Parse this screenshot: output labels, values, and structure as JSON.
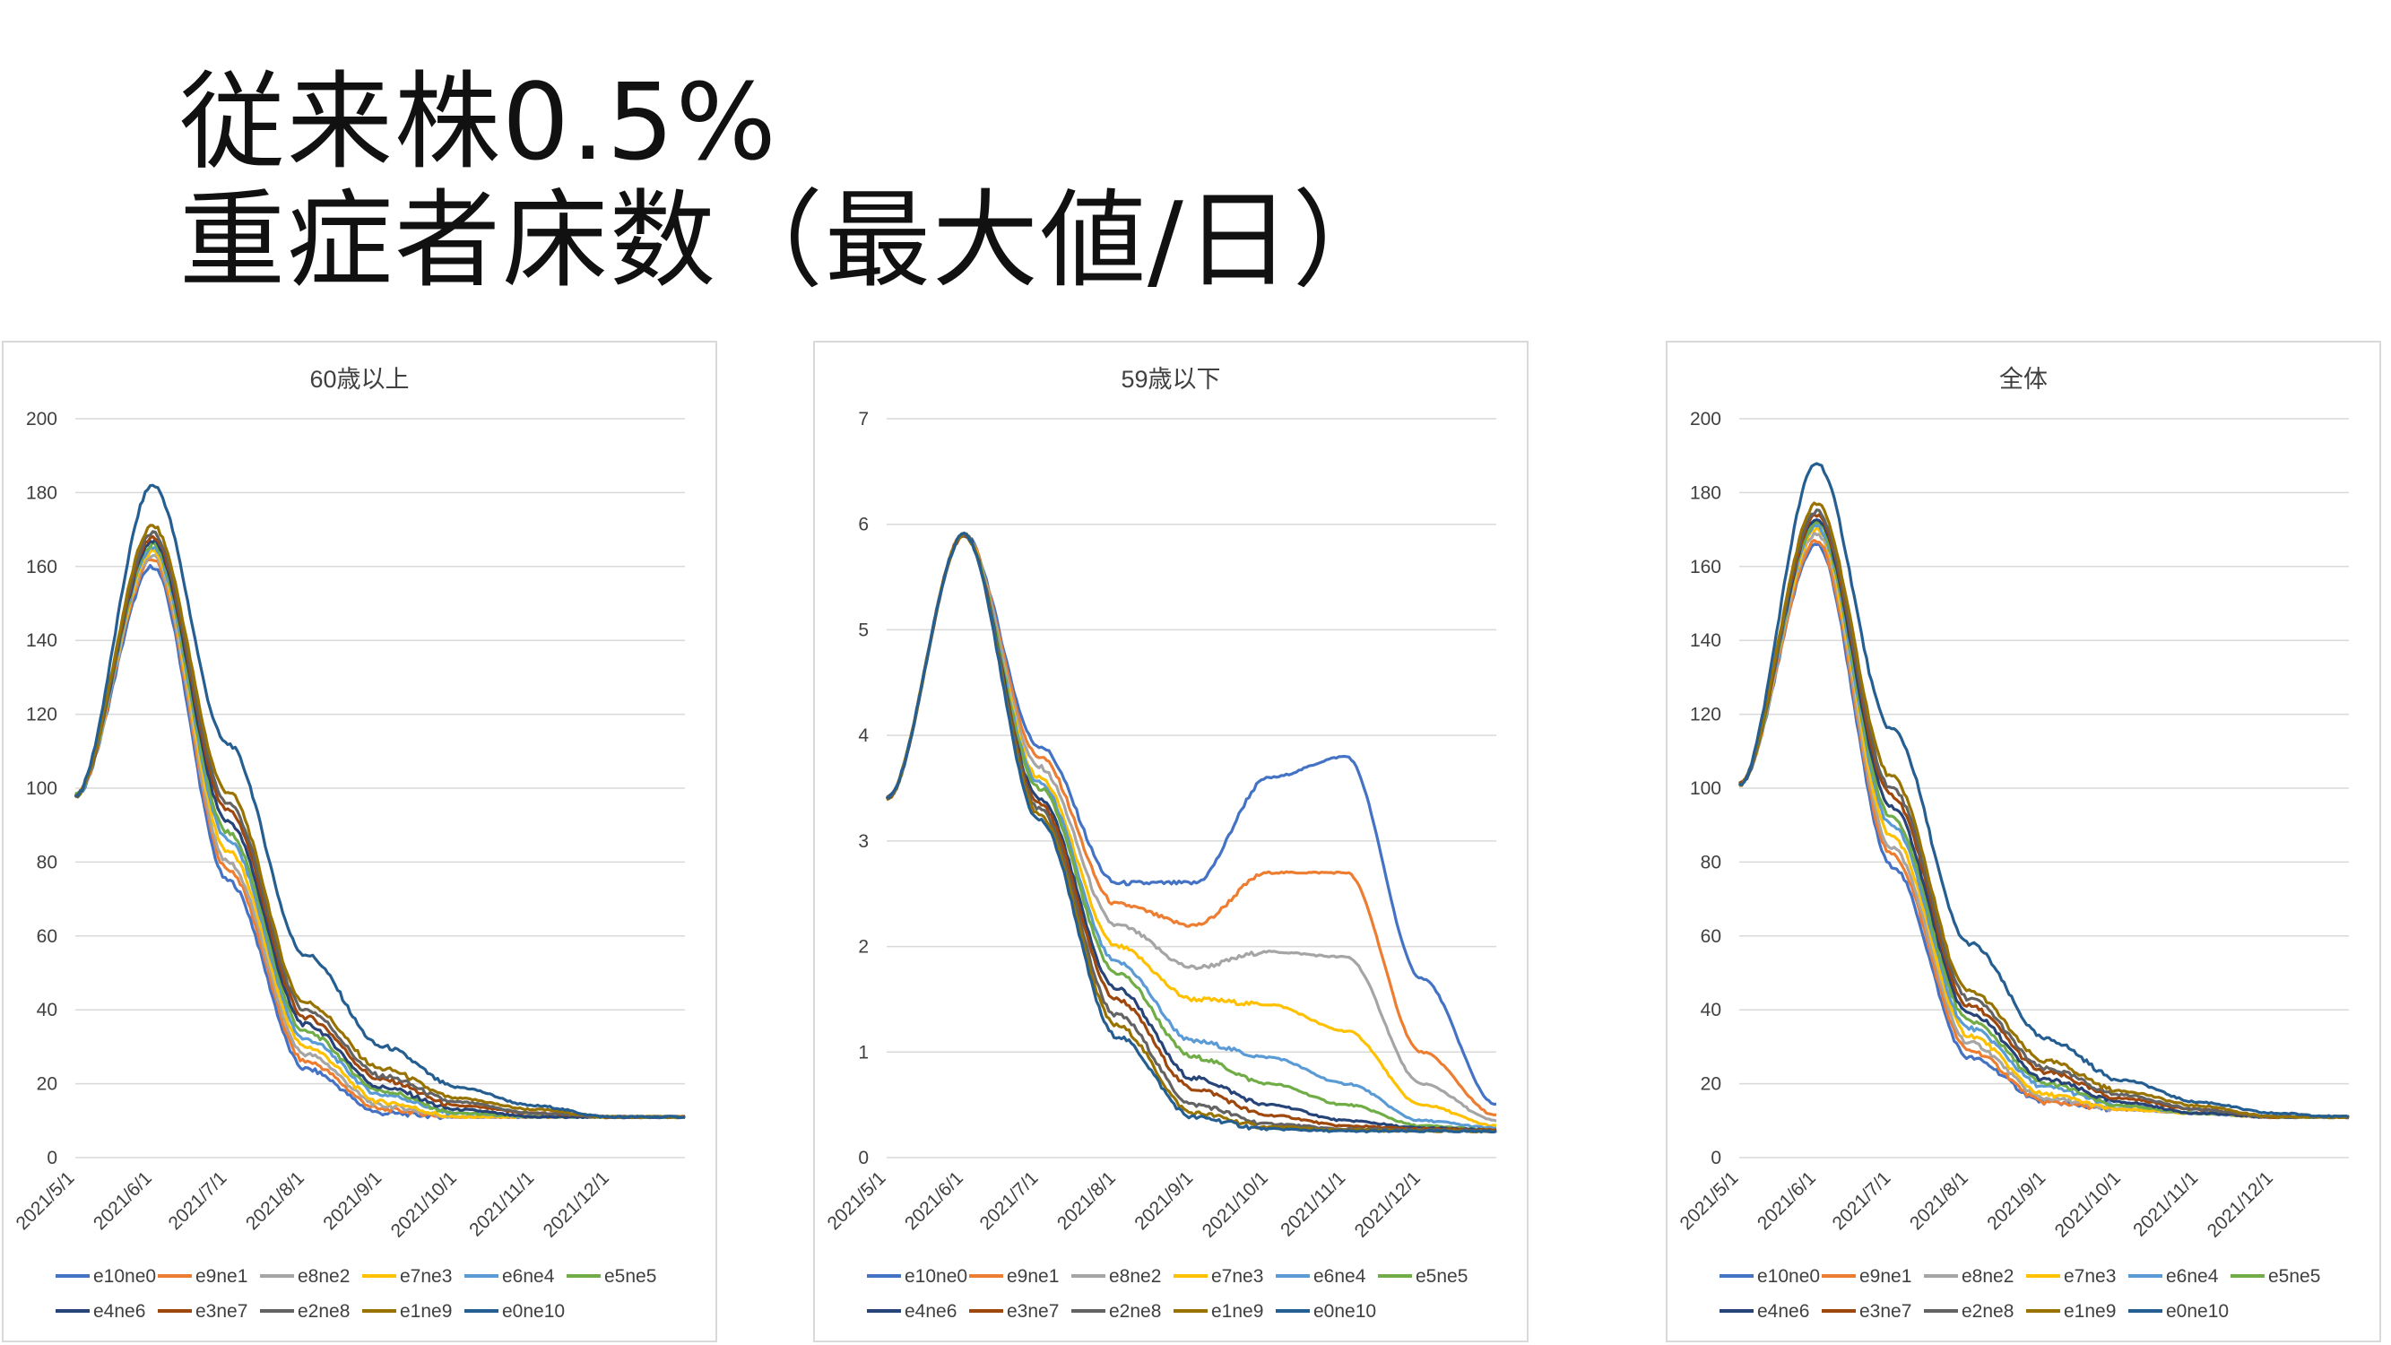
{
  "title": {
    "line1": "従来株0.5%",
    "line2": "重症者床数（最大値/日）"
  },
  "series_names": [
    "e10ne0",
    "e9ne1",
    "e8ne2",
    "e7ne3",
    "e6ne4",
    "e5ne5",
    "e4ne6",
    "e3ne7",
    "e2ne8",
    "e1ne9",
    "e0ne10"
  ],
  "series_colors": [
    "#4472c4",
    "#ed7d31",
    "#a5a5a5",
    "#ffc000",
    "#5b9bd5",
    "#70ad47",
    "#264478",
    "#9e480e",
    "#636363",
    "#997300",
    "#255e91"
  ],
  "chart_data": [
    {
      "type": "line",
      "title": "60歳以上",
      "x": [
        "2021/5/1",
        "2021/6/1",
        "2021/7/1",
        "2021/8/1",
        "2021/9/1",
        "2021/10/1",
        "2021/11/1",
        "2021/12/1",
        "2021/12/31"
      ],
      "x_tick_labels": [
        "2021/5/1",
        "2021/6/1",
        "2021/7/1",
        "2021/8/1",
        "2021/9/1",
        "2021/10/1",
        "2021/11/1",
        "2021/12/1"
      ],
      "ylim": [
        0,
        200
      ],
      "y_ticks": [
        0,
        20,
        40,
        60,
        80,
        100,
        120,
        140,
        160,
        180,
        200
      ],
      "grid": true,
      "legend_position": "bottom",
      "series": [
        {
          "name": "e10ne0",
          "values": [
            98,
            160,
            75,
            24,
            12,
            11,
            11,
            11,
            11
          ]
        },
        {
          "name": "e9ne1",
          "values": [
            98,
            162,
            78,
            26,
            13,
            11,
            11,
            11,
            11
          ]
        },
        {
          "name": "e8ne2",
          "values": [
            98,
            163,
            80,
            28,
            14,
            11,
            11,
            11,
            11
          ]
        },
        {
          "name": "e7ne3",
          "values": [
            98,
            164,
            83,
            30,
            15,
            11,
            11,
            11,
            11
          ]
        },
        {
          "name": "e6ne4",
          "values": [
            98,
            165,
            86,
            32,
            17,
            12,
            11,
            11,
            11
          ]
        },
        {
          "name": "e5ne5",
          "values": [
            98,
            166,
            88,
            34,
            18,
            12,
            11,
            11,
            11
          ]
        },
        {
          "name": "e4ne6",
          "values": [
            98,
            167,
            91,
            36,
            19,
            13,
            11,
            11,
            11
          ]
        },
        {
          "name": "e3ne7",
          "values": [
            98,
            168,
            94,
            38,
            21,
            14,
            12,
            11,
            11
          ]
        },
        {
          "name": "e2ne8",
          "values": [
            98,
            169,
            96,
            40,
            22,
            15,
            12,
            11,
            11
          ]
        },
        {
          "name": "e1ne9",
          "values": [
            98,
            171,
            99,
            42,
            24,
            16,
            13,
            11,
            11
          ]
        },
        {
          "name": "e0ne10",
          "values": [
            98,
            182,
            112,
            55,
            30,
            19,
            14,
            11,
            11
          ]
        }
      ]
    },
    {
      "type": "line",
      "title": "59歳以下",
      "x": [
        "2021/5/1",
        "2021/6/1",
        "2021/7/1",
        "2021/8/1",
        "2021/9/1",
        "2021/10/1",
        "2021/11/1",
        "2021/12/1",
        "2021/12/31"
      ],
      "x_tick_labels": [
        "2021/5/1",
        "2021/6/1",
        "2021/7/1",
        "2021/8/1",
        "2021/9/1",
        "2021/10/1",
        "2021/11/1",
        "2021/12/1"
      ],
      "ylim": [
        0,
        7
      ],
      "y_ticks": [
        0,
        1,
        2,
        3,
        4,
        5,
        6,
        7
      ],
      "grid": true,
      "legend_position": "bottom",
      "series": [
        {
          "name": "e10ne0",
          "values": [
            3.4,
            5.9,
            3.9,
            2.6,
            2.6,
            3.6,
            3.8,
            1.7,
            0.5
          ]
        },
        {
          "name": "e9ne1",
          "values": [
            3.4,
            5.9,
            3.8,
            2.4,
            2.2,
            2.7,
            2.7,
            1.0,
            0.4
          ]
        },
        {
          "name": "e8ne2",
          "values": [
            3.4,
            5.9,
            3.7,
            2.2,
            1.8,
            1.95,
            1.9,
            0.7,
            0.35
          ]
        },
        {
          "name": "e7ne3",
          "values": [
            3.4,
            5.9,
            3.6,
            2.0,
            1.5,
            1.45,
            1.2,
            0.5,
            0.3
          ]
        },
        {
          "name": "e6ne4",
          "values": [
            3.4,
            5.9,
            3.55,
            1.85,
            1.1,
            0.95,
            0.7,
            0.35,
            0.28
          ]
        },
        {
          "name": "e5ne5",
          "values": [
            3.4,
            5.9,
            3.5,
            1.75,
            0.95,
            0.7,
            0.5,
            0.3,
            0.26
          ]
        },
        {
          "name": "e4ne6",
          "values": [
            3.4,
            5.9,
            3.4,
            1.6,
            0.75,
            0.5,
            0.35,
            0.28,
            0.26
          ]
        },
        {
          "name": "e3ne7",
          "values": [
            3.4,
            5.9,
            3.35,
            1.5,
            0.65,
            0.4,
            0.3,
            0.27,
            0.26
          ]
        },
        {
          "name": "e2ne8",
          "values": [
            3.4,
            5.9,
            3.3,
            1.35,
            0.5,
            0.32,
            0.27,
            0.26,
            0.25
          ]
        },
        {
          "name": "e1ne9",
          "values": [
            3.4,
            5.9,
            3.25,
            1.25,
            0.42,
            0.29,
            0.26,
            0.25,
            0.25
          ]
        },
        {
          "name": "e0ne10",
          "values": [
            3.4,
            5.9,
            3.2,
            1.15,
            0.38,
            0.27,
            0.25,
            0.25,
            0.25
          ]
        }
      ]
    },
    {
      "type": "line",
      "title": "全体",
      "x": [
        "2021/5/1",
        "2021/6/1",
        "2021/7/1",
        "2021/8/1",
        "2021/9/1",
        "2021/10/1",
        "2021/11/1",
        "2021/12/1",
        "2021/12/31"
      ],
      "x_tick_labels": [
        "2021/5/1",
        "2021/6/1",
        "2021/7/1",
        "2021/8/1",
        "2021/9/1",
        "2021/10/1",
        "2021/11/1",
        "2021/12/1"
      ],
      "ylim": [
        0,
        200
      ],
      "y_ticks": [
        0,
        20,
        40,
        60,
        80,
        100,
        120,
        140,
        160,
        180,
        200
      ],
      "grid": true,
      "legend_position": "bottom",
      "series": [
        {
          "name": "e10ne0",
          "values": [
            101,
            166,
            79,
            27,
            15,
            13,
            12,
            11,
            11
          ]
        },
        {
          "name": "e9ne1",
          "values": [
            101,
            167,
            82,
            29,
            15,
            13,
            12,
            11,
            11
          ]
        },
        {
          "name": "e8ne2",
          "values": [
            101,
            169,
            84,
            31,
            16,
            13,
            12,
            11,
            11
          ]
        },
        {
          "name": "e7ne3",
          "values": [
            101,
            170,
            87,
            33,
            17,
            13,
            12,
            11,
            11
          ]
        },
        {
          "name": "e6ne4",
          "values": [
            101,
            171,
            90,
            35,
            19,
            14,
            12,
            11,
            11
          ]
        },
        {
          "name": "e5ne5",
          "values": [
            101,
            172,
            92,
            37,
            20,
            14,
            12,
            11,
            11
          ]
        },
        {
          "name": "e4ne6",
          "values": [
            101,
            173,
            95,
            39,
            21,
            15,
            12,
            11,
            11
          ]
        },
        {
          "name": "e3ne7",
          "values": [
            101,
            174,
            98,
            41,
            23,
            16,
            13,
            11,
            11
          ]
        },
        {
          "name": "e2ne8",
          "values": [
            101,
            175,
            100,
            43,
            24,
            17,
            13,
            11,
            11
          ]
        },
        {
          "name": "e1ne9",
          "values": [
            101,
            177,
            103,
            45,
            26,
            18,
            14,
            11,
            11
          ]
        },
        {
          "name": "e0ne10",
          "values": [
            101,
            188,
            116,
            58,
            32,
            21,
            15,
            12,
            11
          ]
        }
      ]
    }
  ]
}
